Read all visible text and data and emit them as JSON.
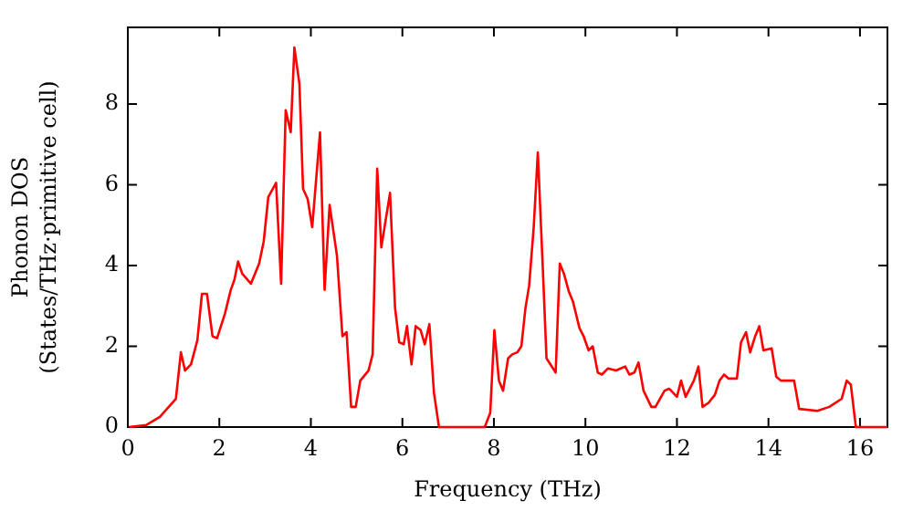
{
  "chart_data": {
    "type": "line",
    "xlabel": "Frequency (THz)",
    "ylabel": "Phonon DOS\n(States/THz·primitive cell)",
    "xlim": [
      0,
      16.6
    ],
    "ylim": [
      0,
      9.9
    ],
    "xticks": [
      0,
      2,
      4,
      6,
      8,
      10,
      12,
      14,
      16
    ],
    "yticks": [
      0,
      2,
      4,
      6,
      8
    ],
    "grid": false,
    "legend": false,
    "marker": "none",
    "line_style": "solid",
    "series": [
      {
        "color": "#ff0000",
        "x": [
          0.03,
          0.4,
          0.7,
          1.05,
          1.16,
          1.25,
          1.38,
          1.52,
          1.62,
          1.73,
          1.85,
          1.95,
          2.12,
          2.25,
          2.33,
          2.41,
          2.5,
          2.69,
          2.87,
          2.97,
          3.07,
          3.24,
          3.35,
          3.45,
          3.56,
          3.64,
          3.75,
          3.83,
          3.93,
          4.03,
          4.2,
          4.3,
          4.41,
          4.57,
          4.69,
          4.78,
          4.88,
          4.98,
          5.08,
          5.26,
          5.35,
          5.45,
          5.54,
          5.73,
          5.84,
          5.93,
          6.03,
          6.1,
          6.2,
          6.29,
          6.4,
          6.49,
          6.59,
          6.69,
          6.8,
          7.8,
          7.92,
          8.01,
          8.11,
          8.2,
          8.31,
          8.4,
          8.51,
          8.6,
          8.69,
          8.77,
          8.87,
          8.96,
          9.07,
          9.15,
          9.35,
          9.44,
          9.53,
          9.64,
          9.73,
          9.87,
          9.96,
          10.07,
          10.16,
          10.27,
          10.36,
          10.49,
          10.67,
          10.87,
          10.96,
          11.07,
          11.16,
          11.27,
          11.44,
          11.53,
          11.73,
          11.83,
          12.0,
          12.09,
          12.19,
          12.37,
          12.47,
          12.56,
          12.69,
          12.83,
          12.93,
          13.03,
          13.13,
          13.31,
          13.4,
          13.51,
          13.6,
          13.71,
          13.8,
          13.89,
          14.07,
          14.17,
          14.27,
          14.56,
          14.67,
          15.07,
          15.33,
          15.6,
          15.71,
          15.8,
          15.91,
          16.6
        ],
        "values": [
          0,
          0.05,
          0.25,
          0.7,
          1.85,
          1.4,
          1.55,
          2.15,
          3.3,
          3.3,
          2.25,
          2.2,
          2.8,
          3.4,
          3.65,
          4.1,
          3.8,
          3.55,
          4.05,
          4.6,
          5.7,
          6.05,
          3.55,
          7.85,
          7.3,
          9.4,
          8.5,
          5.9,
          5.65,
          4.95,
          7.3,
          3.4,
          5.5,
          4.25,
          2.25,
          2.35,
          0.5,
          0.5,
          1.15,
          1.4,
          1.8,
          6.4,
          4.45,
          5.8,
          2.95,
          2.1,
          2.05,
          2.5,
          1.55,
          2.5,
          2.4,
          2.05,
          2.55,
          0.85,
          0,
          0,
          0.35,
          2.4,
          1.15,
          0.9,
          1.7,
          1.8,
          1.85,
          2.0,
          2.95,
          3.5,
          4.95,
          6.8,
          3.9,
          1.7,
          1.35,
          4.05,
          3.8,
          3.35,
          3.1,
          2.45,
          2.25,
          1.9,
          2.0,
          1.35,
          1.3,
          1.45,
          1.4,
          1.5,
          1.3,
          1.35,
          1.6,
          0.9,
          0.5,
          0.5,
          0.9,
          0.95,
          0.75,
          1.15,
          0.75,
          1.15,
          1.5,
          0.5,
          0.6,
          0.8,
          1.15,
          1.3,
          1.2,
          1.2,
          2.1,
          2.35,
          1.85,
          2.25,
          2.5,
          1.9,
          1.95,
          1.25,
          1.15,
          1.15,
          0.45,
          0.4,
          0.5,
          0.7,
          1.15,
          1.05,
          0,
          0
        ]
      }
    ]
  }
}
